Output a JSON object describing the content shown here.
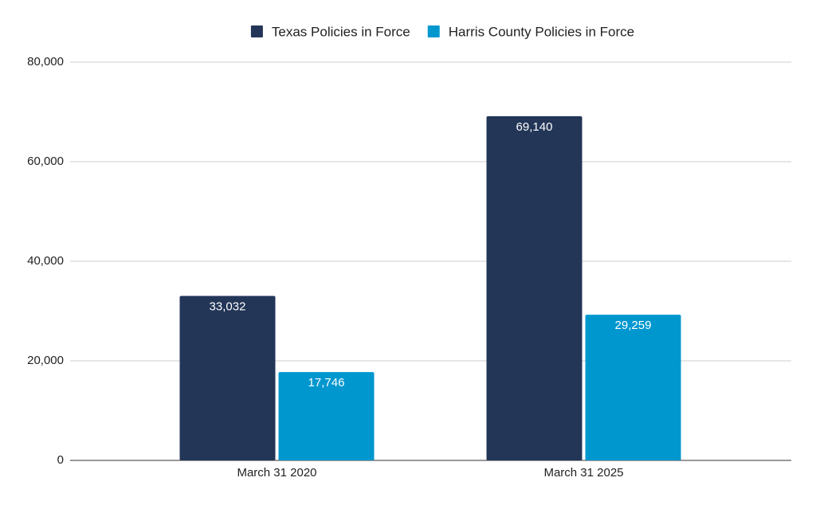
{
  "chart_data": {
    "type": "bar",
    "categories": [
      "March 31 2020",
      "March 31 2025"
    ],
    "series": [
      {
        "name": "Texas Policies in Force",
        "color": "#233657",
        "values": [
          33032,
          69140
        ],
        "value_labels": [
          "33,032",
          "69,140"
        ]
      },
      {
        "name": "Harris County Policies in Force",
        "color": "#0097cf",
        "values": [
          17746,
          29259
        ],
        "value_labels": [
          "17,746",
          "29,259"
        ]
      }
    ],
    "ylim": [
      0,
      80000
    ],
    "yticks": [
      0,
      {
        "value": 20000,
        "label": "20,000"
      },
      {
        "value": 40000,
        "label": "40,000"
      },
      {
        "value": 60000,
        "label": "60,000"
      },
      {
        "value": 80000,
        "label": "80,000"
      }
    ],
    "grid": true,
    "legend": "top"
  }
}
